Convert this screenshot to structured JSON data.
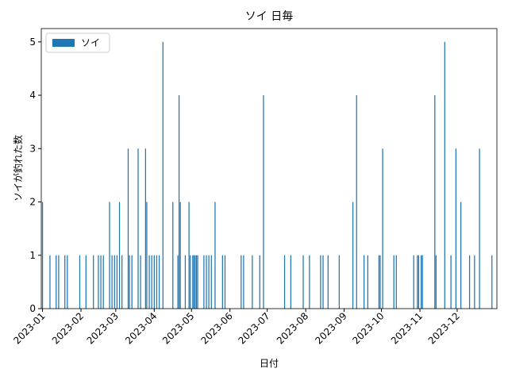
{
  "chart_data": {
    "type": "bar",
    "title": "ソイ 日毎",
    "xlabel": "日付",
    "ylabel": "ソイが釣れた数",
    "legend": "upper left",
    "grid": false,
    "series": [
      {
        "name": "ソイ",
        "color": "#1f77b4",
        "x": [
          "2023-01-01",
          "2023-01-07",
          "2023-01-12",
          "2023-01-14",
          "2023-01-19",
          "2023-01-21",
          "2023-01-31",
          "2023-02-05",
          "2023-02-11",
          "2023-02-15",
          "2023-02-17",
          "2023-02-19",
          "2023-02-24",
          "2023-02-26",
          "2023-02-28",
          "2023-03-02",
          "2023-03-04",
          "2023-03-06",
          "2023-03-11",
          "2023-03-12",
          "2023-03-14",
          "2023-03-19",
          "2023-03-21",
          "2023-03-25",
          "2023-03-26",
          "2023-03-28",
          "2023-03-30",
          "2023-04-01",
          "2023-04-03",
          "2023-04-05",
          "2023-04-08",
          "2023-04-16",
          "2023-04-20",
          "2023-04-21",
          "2023-04-22",
          "2023-04-26",
          "2023-04-29",
          "2023-04-30",
          "2023-05-02",
          "2023-05-03",
          "2023-05-04",
          "2023-05-05",
          "2023-05-06",
          "2023-05-11",
          "2023-05-13",
          "2023-05-15",
          "2023-05-17",
          "2023-05-20",
          "2023-05-26",
          "2023-05-28",
          "2023-06-10",
          "2023-06-12",
          "2023-06-19",
          "2023-06-25",
          "2023-06-28",
          "2023-07-15",
          "2023-07-20",
          "2023-07-30",
          "2023-08-04",
          "2023-08-13",
          "2023-08-15",
          "2023-08-19",
          "2023-08-28",
          "2023-09-08",
          "2023-09-11",
          "2023-09-17",
          "2023-09-20",
          "2023-09-29",
          "2023-09-30",
          "2023-10-02",
          "2023-10-11",
          "2023-10-13",
          "2023-10-27",
          "2023-10-30",
          "2023-10-31",
          "2023-11-02",
          "2023-11-03",
          "2023-11-13",
          "2023-11-14",
          "2023-11-21",
          "2023-11-26",
          "2023-11-30",
          "2023-12-04",
          "2023-12-11",
          "2023-12-15",
          "2023-12-19",
          "2023-12-29"
        ],
        "values": [
          2,
          1,
          1,
          1,
          1,
          1,
          1,
          1,
          1,
          1,
          1,
          1,
          2,
          1,
          1,
          1,
          2,
          1,
          3,
          1,
          1,
          3,
          1,
          3,
          2,
          1,
          1,
          1,
          1,
          1,
          5,
          2,
          1,
          4,
          2,
          1,
          2,
          1,
          1,
          1,
          1,
          1,
          1,
          1,
          1,
          1,
          1,
          2,
          1,
          1,
          1,
          1,
          1,
          1,
          4,
          1,
          1,
          1,
          1,
          1,
          1,
          1,
          1,
          2,
          4,
          1,
          1,
          1,
          1,
          3,
          1,
          1,
          1,
          1,
          1,
          1,
          1,
          4,
          1,
          5,
          1,
          3,
          2,
          1,
          1,
          3,
          1
        ]
      }
    ],
    "xlim": [
      "2022-12-31",
      "2024-01-02"
    ],
    "xticks": [
      {
        "value": "2023-01-01",
        "label": "2023-01"
      },
      {
        "value": "2023-02-01",
        "label": "2023-02"
      },
      {
        "value": "2023-03-01",
        "label": "2023-03"
      },
      {
        "value": "2023-04-01",
        "label": "2023-04"
      },
      {
        "value": "2023-05-01",
        "label": "2023-05"
      },
      {
        "value": "2023-06-01",
        "label": "2023-06"
      },
      {
        "value": "2023-07-01",
        "label": "2023-07"
      },
      {
        "value": "2023-08-01",
        "label": "2023-08"
      },
      {
        "value": "2023-09-01",
        "label": "2023-09"
      },
      {
        "value": "2023-10-01",
        "label": "2023-10"
      },
      {
        "value": "2023-11-01",
        "label": "2023-11"
      },
      {
        "value": "2023-12-01",
        "label": "2023-12"
      }
    ],
    "ylim": [
      0,
      5.25
    ],
    "yticks": [
      0,
      1,
      2,
      3,
      4,
      5
    ]
  }
}
